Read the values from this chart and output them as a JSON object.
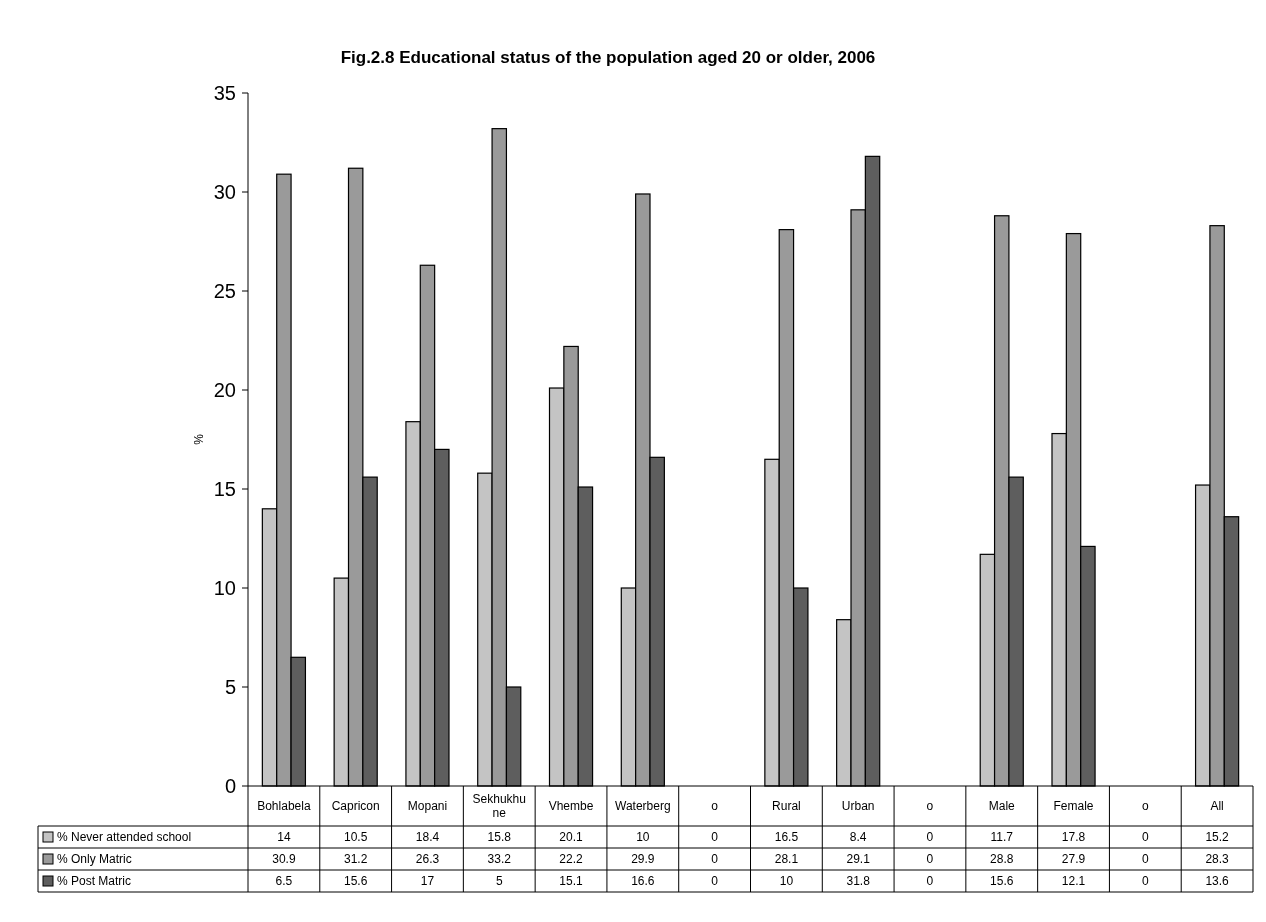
{
  "chart_data": {
    "type": "bar",
    "title": "Fig.2.8 Educational status of the population aged 20 or older, 2006",
    "ylabel": "%",
    "categories": [
      "Bohlabela",
      "Capricon",
      "Mopani",
      "Sekhukhune",
      "Vhembe",
      "Waterberg",
      "o",
      "Rural",
      "Urban",
      "o",
      "Male",
      "Female",
      "o",
      "All"
    ],
    "series": [
      {
        "name": "% Never attended school",
        "color": "#c4c4c4",
        "values": [
          14,
          10.5,
          18.4,
          15.8,
          20.1,
          10,
          0,
          16.5,
          8.4,
          0,
          11.7,
          17.8,
          0,
          15.2
        ]
      },
      {
        "name": "% Only Matric",
        "color": "#9a9a9a",
        "values": [
          30.9,
          31.2,
          26.3,
          33.2,
          22.2,
          29.9,
          0,
          28.1,
          29.1,
          0,
          28.8,
          27.9,
          0,
          28.3
        ]
      },
      {
        "name": "% Post Matric",
        "color": "#5e5e5e",
        "values": [
          6.5,
          15.6,
          17,
          5,
          15.1,
          16.6,
          0,
          10,
          31.8,
          0,
          15.6,
          12.1,
          0,
          13.6
        ]
      }
    ],
    "ylim": [
      0,
      35
    ],
    "yticks": [
      0,
      5,
      10,
      15,
      20,
      25,
      30,
      35
    ],
    "data_labels": true,
    "legend": "bottom left"
  }
}
